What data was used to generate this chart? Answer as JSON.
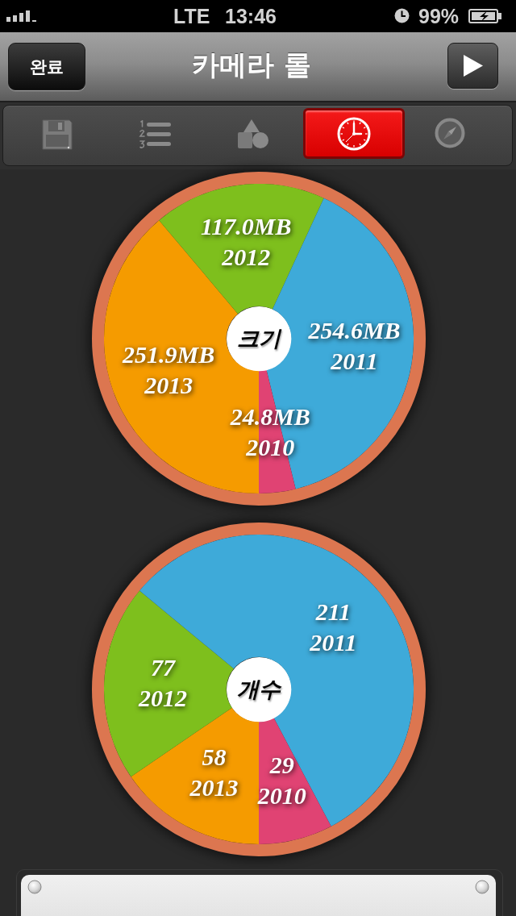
{
  "chart_data": [
    {
      "type": "other",
      "title": "카메라 롤",
      "annotations": [
        "LTE",
        "13:46",
        "99%",
        "완료"
      ]
    },
    {
      "type": "donut",
      "title": "크기",
      "categories": [
        "2013",
        "2012",
        "2011",
        "2010"
      ],
      "values": [
        251.9,
        117.0,
        254.6,
        24.8
      ],
      "value_labels": [
        "251.9MB",
        "117.0MB",
        "254.6MB",
        "24.8MB"
      ],
      "colors": [
        "#f59b00",
        "#7ebf1d",
        "#3eaad9",
        "#e04373"
      ]
    },
    {
      "type": "donut",
      "title": "개수",
      "categories": [
        "2013",
        "2012",
        "2011",
        "2010"
      ],
      "values": [
        58,
        77,
        211,
        29
      ],
      "data_labels": true,
      "colors": [
        "#f59b00",
        "#7ebf1d",
        "#3eaad9",
        "#e04373"
      ]
    }
  ]
}
